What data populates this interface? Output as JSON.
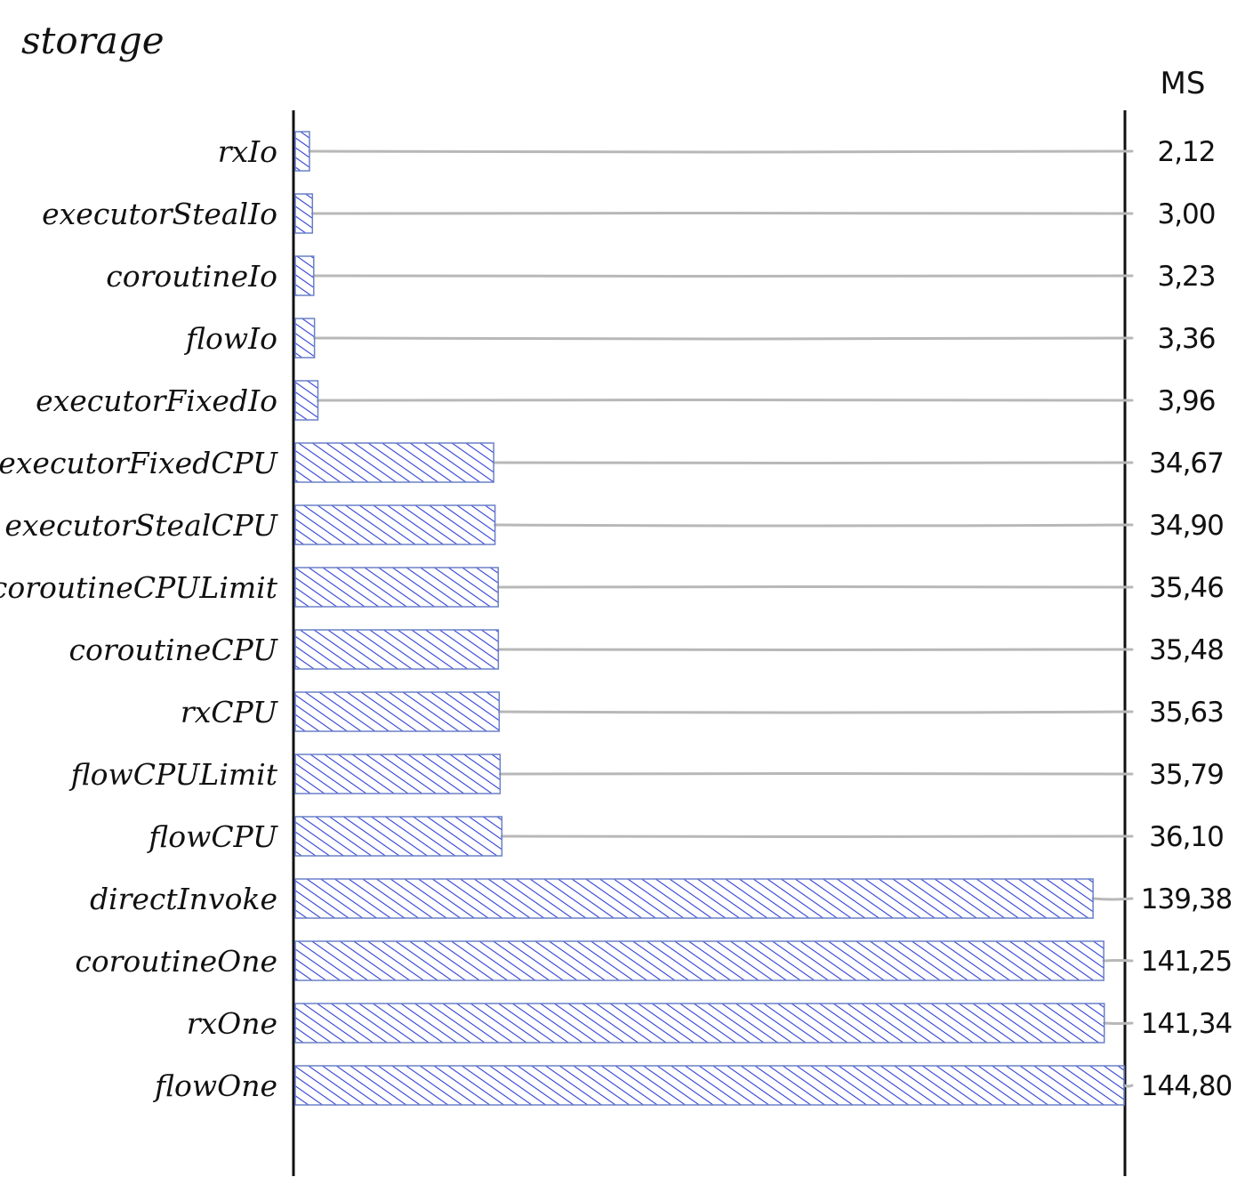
{
  "colors": {
    "bar_fill": "#2f3fd6",
    "bar_stroke": "#6a80c8",
    "leader": "#b8b8b8",
    "axis": "#111111",
    "text": "#111111"
  },
  "chart_data": {
    "type": "bar",
    "orientation": "horizontal",
    "title": "storage",
    "unit": "MS",
    "xlim": [
      0,
      144.8
    ],
    "grid": false,
    "fill_style": "hatched",
    "categories": [
      "rxIo",
      "executorStealIo",
      "coroutineIo",
      "flowIo",
      "executorFixedIo",
      "executorFixedCPU",
      "executorStealCPU",
      "coroutineCPULimit",
      "coroutineCPU",
      "rxCPU",
      "flowCPULimit",
      "flowCPU",
      "directInvoke",
      "coroutineOne",
      "rxOne",
      "flowOne"
    ],
    "values": [
      2.12,
      3.0,
      3.23,
      3.36,
      3.96,
      34.67,
      34.9,
      35.46,
      35.48,
      35.63,
      35.79,
      36.1,
      139.38,
      141.25,
      141.34,
      144.8
    ],
    "value_labels": [
      "2,12",
      "3,00",
      "3,23",
      "3,36",
      "3,96",
      "34,67",
      "34,90",
      "35,46",
      "35,48",
      "35,63",
      "35,79",
      "36,10",
      "139,38",
      "141,25",
      "141,34",
      "144,80"
    ]
  }
}
